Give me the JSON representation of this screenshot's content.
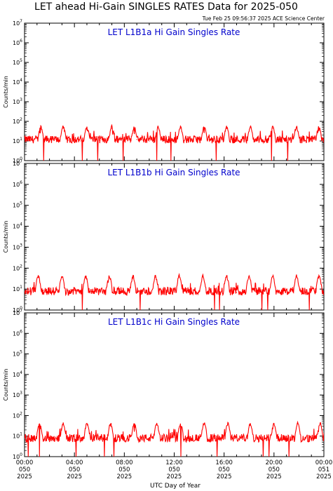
{
  "title": "LET ahead Hi-Gain SINGLES RATES Data for 2025-050",
  "timestamp": "Tue Feb 25 09:56:37 2025 ACE Science Center",
  "xlabel": "UTC Day of Year",
  "colors": {
    "series": "#ff0000",
    "panel_title": "#0000cc",
    "axes": "#000000"
  },
  "x_ticks": [
    {
      "time": "00:00",
      "doy": "050",
      "year": "2025"
    },
    {
      "time": "04:00",
      "doy": "050",
      "year": "2025"
    },
    {
      "time": "08:00",
      "doy": "050",
      "year": "2025"
    },
    {
      "time": "12:00",
      "doy": "050",
      "year": "2025"
    },
    {
      "time": "16:00",
      "doy": "050",
      "year": "2025"
    },
    {
      "time": "20:00",
      "doy": "050",
      "year": "2025"
    },
    {
      "time": "00:00",
      "doy": "051",
      "year": "2025"
    }
  ],
  "chart_data": [
    {
      "type": "line",
      "title": "LET L1B1a Hi Gain Singles Rate",
      "ylabel": "Counts/min",
      "yscale": "log",
      "ylim": [
        1,
        10000000
      ],
      "xlim_hours": [
        0,
        24
      ],
      "baseline": 12,
      "spike_hours": [
        1.3,
        3.1,
        5.0,
        7.0,
        8.8,
        10.7,
        12.5,
        14.4,
        16.2,
        18.1,
        19.9,
        21.8,
        23.6
      ],
      "spike_peak": 50,
      "x": [
        0,
        0.5,
        1,
        1.3,
        1.5,
        2,
        2.5,
        3.1,
        3.5,
        4,
        4.5,
        5,
        5.5,
        6,
        6.5,
        7,
        7.5,
        8,
        8.5,
        8.8,
        9,
        9.5,
        10,
        10.7,
        11,
        11.5,
        12,
        12.5,
        13,
        13.5,
        14,
        14.4,
        14.8,
        15.5,
        16.2,
        16.6,
        17,
        17.5,
        18.1,
        18.5,
        19,
        19.5,
        19.9,
        20.3,
        21,
        21.5,
        21.8,
        22.2,
        23,
        23.6,
        24
      ],
      "y": [
        12,
        11,
        13,
        48,
        14,
        10,
        12,
        45,
        11,
        12,
        10,
        50,
        13,
        11,
        12,
        44,
        12,
        10,
        11,
        47,
        12,
        11,
        10,
        52,
        12,
        11,
        13,
        46,
        10,
        12,
        11,
        49,
        12,
        10,
        43,
        12,
        11,
        13,
        48,
        11,
        12,
        10,
        45,
        12,
        11,
        13,
        50,
        12,
        10,
        47,
        12
      ]
    },
    {
      "type": "line",
      "title": "LET L1B1b Hi Gain Singles Rate",
      "ylabel": "Counts/min",
      "yscale": "log",
      "ylim": [
        1,
        10000000
      ],
      "xlim_hours": [
        0,
        24
      ],
      "baseline": 8,
      "spike_hours": [
        1.1,
        3.0,
        4.9,
        6.8,
        8.7,
        10.5,
        12.4,
        14.3,
        16.2,
        18.0,
        19.9,
        21.8,
        23.6
      ],
      "spike_peak": 40,
      "x": [
        0,
        0.5,
        1.1,
        1.5,
        2,
        2.5,
        3.0,
        3.5,
        4,
        4.5,
        4.9,
        5.5,
        6,
        6.8,
        7.2,
        8,
        8.7,
        9.2,
        10,
        10.5,
        11,
        11.5,
        12,
        12.4,
        13,
        13.5,
        14.3,
        14.8,
        15.5,
        16.2,
        16.6,
        17,
        17.5,
        18.0,
        18.5,
        19,
        19.9,
        20.3,
        21,
        21.8,
        22.2,
        23,
        23.6,
        24
      ],
      "y": [
        8,
        7,
        40,
        9,
        7,
        8,
        38,
        7,
        9,
        8,
        42,
        7,
        8,
        39,
        8,
        7,
        41,
        8,
        7,
        37,
        9,
        8,
        7,
        40,
        8,
        9,
        38,
        7,
        8,
        41,
        8,
        7,
        9,
        39,
        8,
        7,
        42,
        8,
        9,
        40,
        7,
        8,
        38,
        8
      ]
    },
    {
      "type": "line",
      "title": "LET L1B1c Hi Gain Singles Rate",
      "ylabel": "Counts/min",
      "yscale": "log",
      "ylim": [
        1,
        10000000
      ],
      "xlim_hours": [
        0,
        24
      ],
      "baseline": 8,
      "spike_hours": [
        1.2,
        3.1,
        5.0,
        6.9,
        8.8,
        10.6,
        12.5,
        14.4,
        16.3,
        18.1,
        20.0,
        21.9,
        23.7
      ],
      "spike_peak": 40,
      "x": [
        0,
        0.5,
        1.2,
        1.6,
        2,
        2.5,
        3.1,
        3.5,
        4,
        4.5,
        5.0,
        5.5,
        6,
        6.9,
        7.3,
        8,
        8.8,
        9.2,
        10,
        10.6,
        11,
        11.5,
        12,
        12.5,
        13,
        13.5,
        14.4,
        14.8,
        15.5,
        16.3,
        16.7,
        17,
        17.5,
        18.1,
        18.5,
        19,
        20.0,
        20.4,
        21,
        21.9,
        22.3,
        23,
        23.7,
        24
      ],
      "y": [
        8,
        7,
        40,
        8,
        7,
        9,
        39,
        8,
        7,
        8,
        41,
        7,
        8,
        38,
        8,
        7,
        40,
        9,
        8,
        42,
        7,
        8,
        9,
        39,
        8,
        7,
        41,
        8,
        7,
        38,
        8,
        9,
        7,
        40,
        8,
        7,
        42,
        8,
        9,
        39,
        7,
        8,
        40,
        8
      ]
    }
  ]
}
